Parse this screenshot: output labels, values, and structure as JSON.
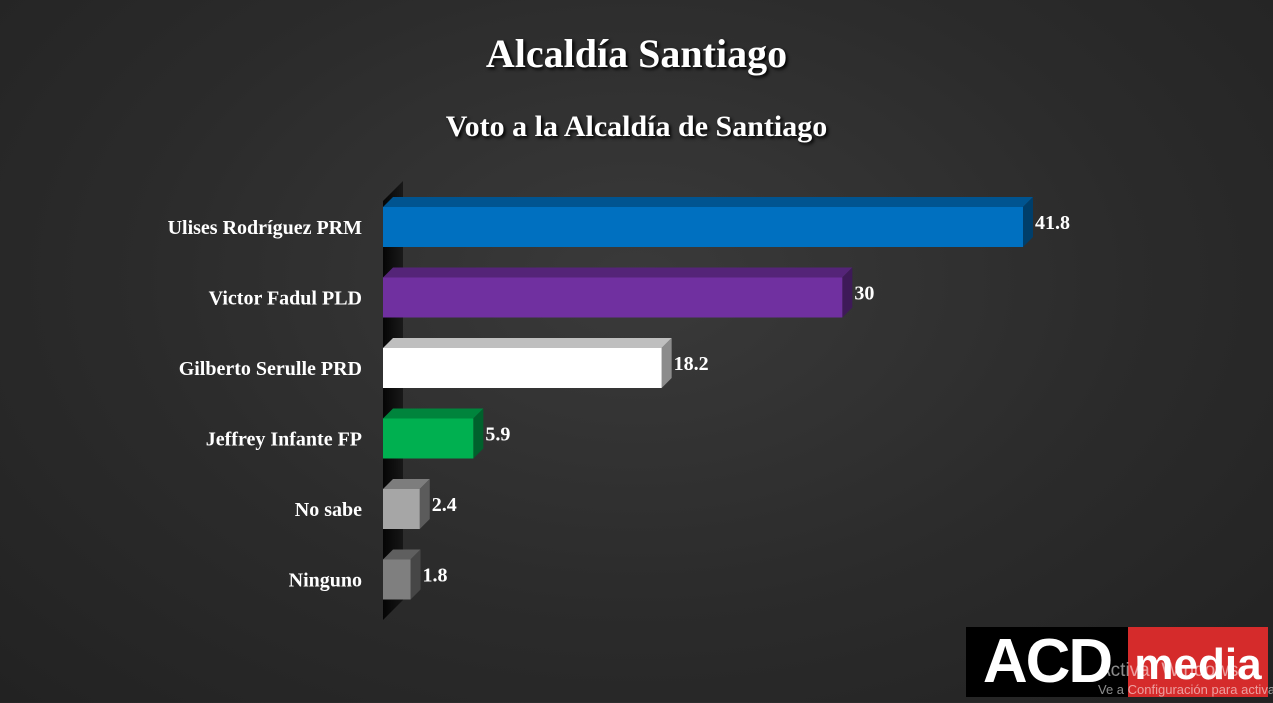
{
  "header": {
    "title": "Alcaldía Santiago",
    "subtitle": "Voto a la Alcaldía de Santiago"
  },
  "chart_data": {
    "type": "bar",
    "orientation": "horizontal",
    "title": "Voto a la Alcaldía de Santiago",
    "categories": [
      "Ulises Rodríguez PRM",
      "Victor Fadul PLD",
      "Gilberto Serulle PRD",
      "Jeffrey Infante FP",
      "No sabe",
      "Ninguno"
    ],
    "values": [
      41.8,
      30,
      18.2,
      5.9,
      2.4,
      1.8
    ],
    "value_labels": [
      "41.8",
      "30",
      "18.2",
      "5.9",
      "2.4",
      "1.8"
    ],
    "bar_colors": [
      "#0070c0",
      "#7030a0",
      "#ffffff",
      "#00b050",
      "#a6a6a6",
      "#7f7f7f"
    ],
    "xlim": [
      0,
      41.8
    ],
    "grid": false,
    "legend": "none"
  },
  "logo": {
    "part1": "ACD",
    "part2": "media"
  },
  "watermark": {
    "line1": "Activar Windows",
    "line2": "Ve a Configuración para activar Windows."
  }
}
